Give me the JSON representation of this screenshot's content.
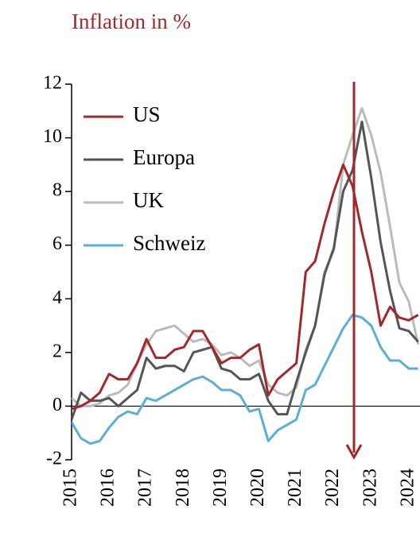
{
  "chart_data": {
    "type": "line",
    "title": "Inflation in %",
    "x": [
      2015,
      2015.25,
      2015.5,
      2015.75,
      2016,
      2016.25,
      2016.5,
      2016.75,
      2017,
      2017.25,
      2017.5,
      2017.75,
      2018,
      2018.25,
      2018.5,
      2018.75,
      2019,
      2019.25,
      2019.5,
      2019.75,
      2020,
      2020.25,
      2020.5,
      2020.75,
      2021,
      2021.25,
      2021.5,
      2021.75,
      2022,
      2022.25,
      2022.5,
      2022.75,
      2023,
      2023.25,
      2023.5,
      2023.75,
      2024,
      2024.25
    ],
    "series": [
      {
        "name": "US",
        "color": "#a3282a",
        "values": [
          -0.1,
          0,
          0.2,
          0.5,
          1.2,
          1.0,
          1.0,
          1.6,
          2.5,
          1.8,
          1.8,
          2.1,
          2.2,
          2.8,
          2.8,
          2.2,
          1.6,
          1.8,
          1.8,
          2.1,
          2.3,
          0.4,
          1.0,
          1.3,
          1.6,
          5.0,
          5.4,
          6.8,
          8.0,
          9.0,
          8.2,
          6.5,
          5.0,
          3.0,
          3.7,
          3.3,
          3.2,
          3.4
        ]
      },
      {
        "name": "Europa",
        "color": "#555555",
        "values": [
          -0.5,
          0.5,
          0.2,
          0.2,
          0.3,
          0,
          0.3,
          0.6,
          1.8,
          1.4,
          1.5,
          1.5,
          1.3,
          2.0,
          2.1,
          2.2,
          1.4,
          1.3,
          1.0,
          1.0,
          1.2,
          0.2,
          -0.3,
          -0.3,
          0.9,
          2.0,
          3.0,
          4.9,
          5.9,
          8.0,
          8.8,
          10.6,
          8.5,
          6.1,
          4.3,
          2.9,
          2.8,
          2.4
        ]
      },
      {
        "name": "UK",
        "color": "#bbbbbb",
        "values": [
          0.3,
          0,
          0,
          0.1,
          0.4,
          0.5,
          0.8,
          1.6,
          2.3,
          2.8,
          2.9,
          3.0,
          2.7,
          2.4,
          2.5,
          2.3,
          1.9,
          2.0,
          1.8,
          1.5,
          1.7,
          0.8,
          0.5,
          0.4,
          0.7,
          2.1,
          3.0,
          5.0,
          5.8,
          9.0,
          10.1,
          11.1,
          10.1,
          8.7,
          6.7,
          4.6,
          3.9,
          2.3
        ]
      },
      {
        "name": "Schweiz",
        "color": "#5aafd8",
        "values": [
          -0.6,
          -1.2,
          -1.4,
          -1.3,
          -0.8,
          -0.4,
          -0.2,
          -0.3,
          0.3,
          0.2,
          0.4,
          0.6,
          0.8,
          1.0,
          1.1,
          0.9,
          0.6,
          0.6,
          0.4,
          -0.2,
          -0.1,
          -1.3,
          -0.9,
          -0.7,
          -0.5,
          0.6,
          0.8,
          1.5,
          2.2,
          2.9,
          3.4,
          3.3,
          3.0,
          2.2,
          1.7,
          1.7,
          1.4,
          1.4
        ]
      }
    ],
    "xlim": [
      2015,
      2024.3
    ],
    "xticks": [
      2015,
      2016,
      2017,
      2018,
      2019,
      2020,
      2021,
      2022,
      2023,
      2024
    ],
    "ylim": [
      -2,
      12
    ],
    "yticks": [
      -2,
      0,
      2,
      4,
      6,
      8,
      10,
      12
    ],
    "grid": false,
    "legend": "upper left"
  }
}
